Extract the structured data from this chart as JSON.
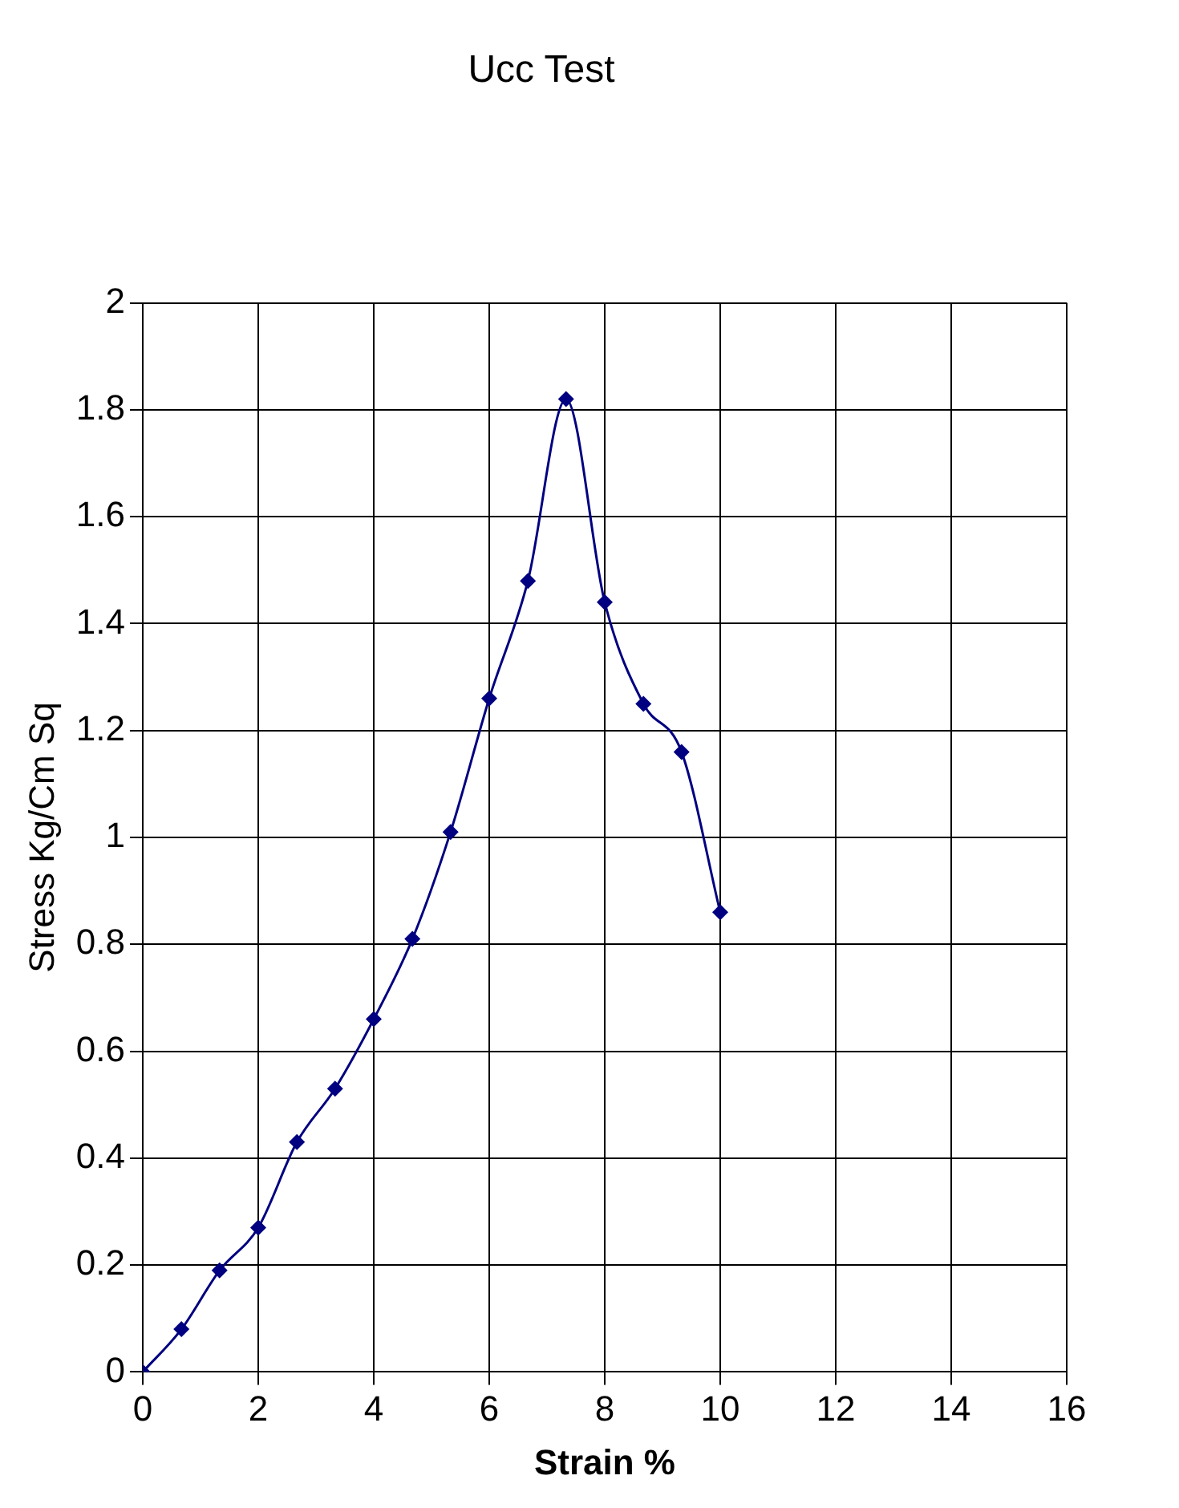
{
  "chart_data": {
    "type": "line",
    "title": "Ucc Test",
    "xlabel": "Strain %",
    "ylabel": "Stress Kg/Cm Sq",
    "x": [
      0,
      0.67,
      1.33,
      2,
      2.67,
      3.33,
      4,
      4.67,
      5.33,
      6,
      6.67,
      7.33,
      8,
      8.67,
      9.33,
      10
    ],
    "series": [
      {
        "color": "#000080",
        "values": [
          0,
          0.08,
          0.19,
          0.27,
          0.43,
          0.53,
          0.66,
          0.81,
          1.01,
          1.26,
          1.48,
          1.82,
          1.44,
          1.25,
          1.16,
          0.86
        ]
      }
    ],
    "xlim": [
      0,
      16
    ],
    "xticks": [
      0,
      2,
      4,
      6,
      8,
      10,
      12,
      14,
      16
    ],
    "ylim": [
      0,
      2
    ],
    "yticks": [
      0,
      0.2,
      0.4,
      0.6,
      0.8,
      1,
      1.2,
      1.4,
      1.6,
      1.8,
      2
    ],
    "grid": true,
    "legend": false,
    "marker": "diamond",
    "line_style": "solid"
  }
}
